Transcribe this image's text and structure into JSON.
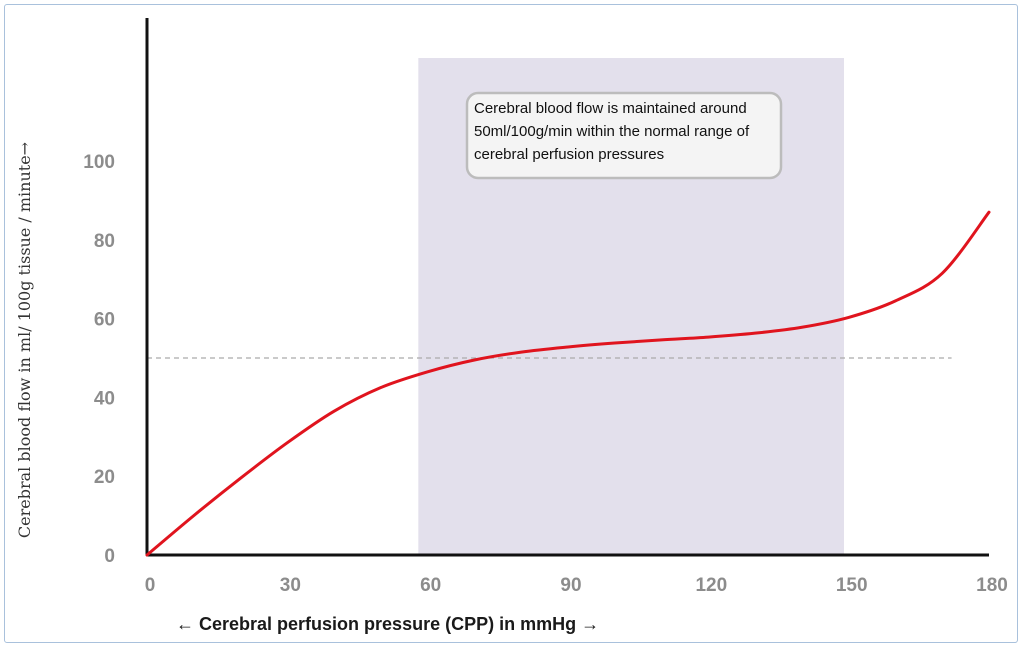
{
  "chart_data": {
    "type": "line",
    "title": "",
    "xlabel": "← Cerebral perfusion pressure (CPP) in mmHg →",
    "ylabel": "Cerebral blood flow in  ml/ 100g  tissue / minute→",
    "xlim": [
      0,
      180
    ],
    "ylim": [
      0,
      100
    ],
    "x_ticks": [
      0,
      30,
      60,
      90,
      120,
      150,
      180
    ],
    "y_ticks": [
      0,
      20,
      40,
      60,
      80,
      100
    ],
    "grid": false,
    "series": [
      {
        "color": "#e0141e",
        "points": [
          [
            0,
            0
          ],
          [
            10,
            10
          ],
          [
            20,
            19.5
          ],
          [
            30,
            28.5
          ],
          [
            40,
            36.5
          ],
          [
            50,
            42.5
          ],
          [
            60,
            46.5
          ],
          [
            70,
            49.5
          ],
          [
            80,
            51.5
          ],
          [
            90,
            52.8
          ],
          [
            100,
            53.8
          ],
          [
            110,
            54.6
          ],
          [
            120,
            55.3
          ],
          [
            130,
            56.3
          ],
          [
            140,
            57.8
          ],
          [
            150,
            60.3
          ],
          [
            160,
            64.5
          ],
          [
            170,
            71.5
          ],
          [
            180,
            87
          ]
        ]
      }
    ],
    "reference_line": {
      "y": 50,
      "x_range": [
        0,
        172
      ],
      "style": "dashed",
      "color": "#aaaaaa"
    },
    "shaded_region": {
      "x_range": [
        58,
        149
      ],
      "color": "#e3e0ec"
    },
    "annotation": {
      "lines": [
        "Cerebral blood flow is maintained around",
        "50ml/100g/min within the normal range of",
        "cerebral perfusion pressures"
      ]
    }
  }
}
